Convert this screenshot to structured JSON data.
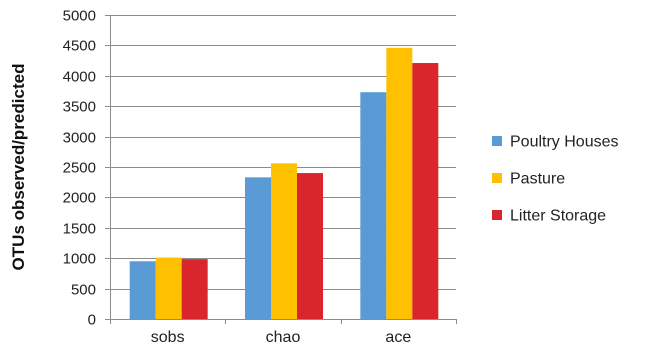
{
  "chart_data": {
    "type": "bar",
    "title": "",
    "xlabel": "",
    "ylabel": "OTUs observed/predicted",
    "ylim": [
      0,
      5000
    ],
    "ytick_step": 500,
    "yticks": [
      "0",
      "500",
      "1000",
      "1500",
      "2000",
      "2500",
      "3000",
      "3500",
      "4000",
      "4500",
      "5000"
    ],
    "categories": [
      "sobs",
      "chao",
      "ace"
    ],
    "grid": true,
    "legend_position": "right",
    "series": [
      {
        "name": "Poultry Houses",
        "color": "#5b9bd5",
        "values": [
          950,
          2330,
          3730
        ]
      },
      {
        "name": "Pasture",
        "color": "#ffc000",
        "values": [
          1010,
          2560,
          4460
        ]
      },
      {
        "name": "Litter Storage",
        "color": "#d9262c",
        "values": [
          985,
          2400,
          4210
        ]
      }
    ]
  }
}
